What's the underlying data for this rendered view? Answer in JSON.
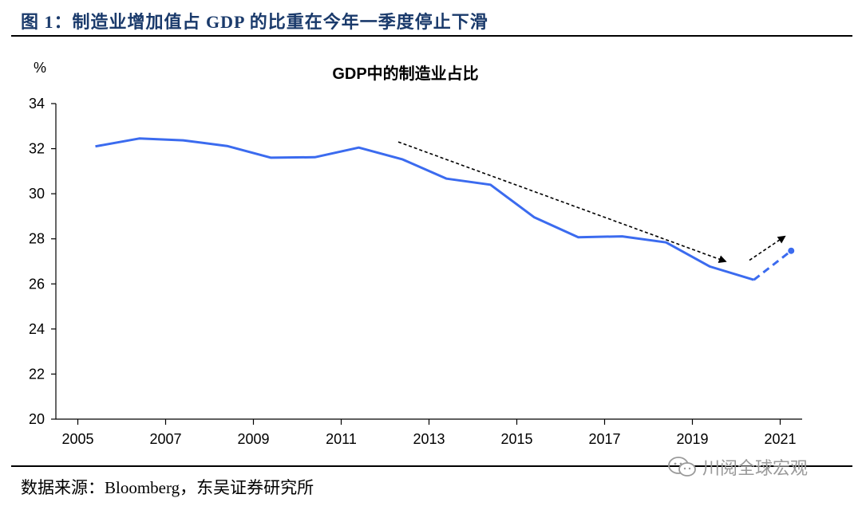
{
  "figure_title": "图 1：制造业增加值占 GDP 的比重在今年一季度停止下滑",
  "source_text": "数据来源：Bloomberg，东吴证券研究所",
  "watermark_text": "川阅全球宏观",
  "colors": {
    "line": "#3b6bef",
    "axis": "#000000",
    "title": "#1a3a6b",
    "arrow": "#000000"
  },
  "chart_data": {
    "type": "line",
    "title": "GDP中的制造业占比",
    "ylabel": "%",
    "xlabel": "",
    "ylim": [
      20,
      34
    ],
    "yticks": [
      20,
      22,
      24,
      26,
      28,
      30,
      32,
      34
    ],
    "xlim": [
      2005,
      2021
    ],
    "xticks": [
      "2005",
      "2007",
      "2009",
      "2011",
      "2013",
      "2015",
      "2017",
      "2019",
      "2021"
    ],
    "series": [
      {
        "style": "solid",
        "x": [
          2005.4,
          2006.4,
          2007.4,
          2008.4,
          2009.4,
          2010.4,
          2011.4,
          2012.4,
          2013.4,
          2014.4,
          2015.4,
          2016.4,
          2017.4,
          2018.4,
          2019.4,
          2020.4
        ],
        "values": [
          32.1,
          32.45,
          32.37,
          32.12,
          31.6,
          31.62,
          32.05,
          31.52,
          30.67,
          30.4,
          28.95,
          28.07,
          28.11,
          27.84,
          26.77,
          26.18
        ]
      },
      {
        "style": "dashed",
        "x": [
          2020.4,
          2021.25
        ],
        "values": [
          26.18,
          27.47
        ]
      }
    ],
    "annotations": [
      {
        "type": "arrow",
        "style": "dashed",
        "from": [
          2012.3,
          32.3
        ],
        "to": [
          2019.75,
          27.0
        ]
      },
      {
        "type": "arrow",
        "style": "dashed",
        "from": [
          2020.3,
          27.05
        ],
        "to": [
          2021.1,
          28.1
        ]
      }
    ],
    "grid": false,
    "legend": "none"
  }
}
